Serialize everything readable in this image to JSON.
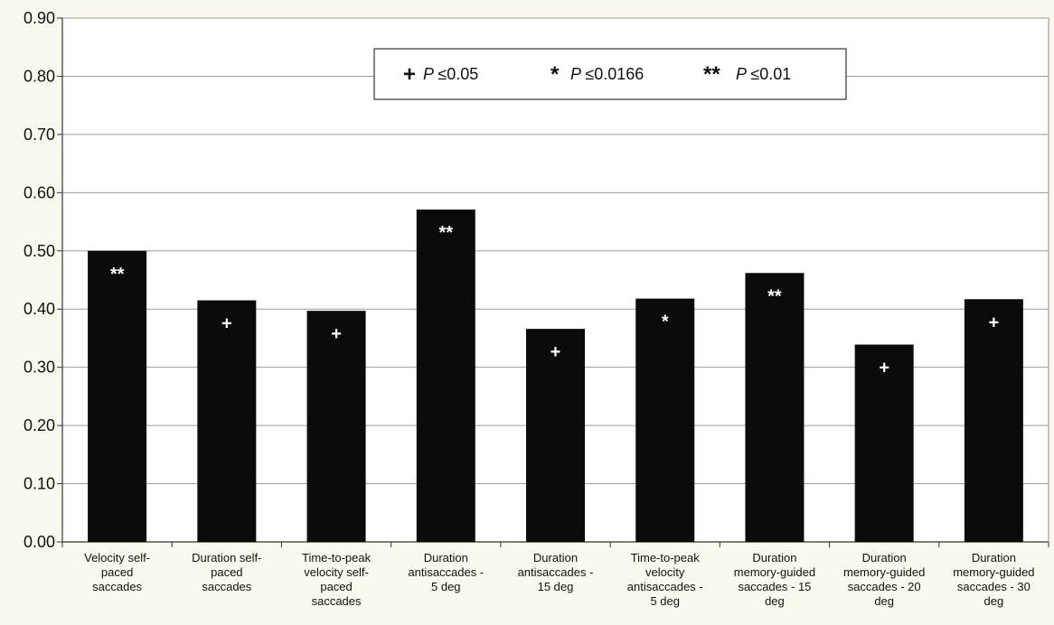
{
  "chart_data": {
    "type": "bar",
    "title": "",
    "xlabel": "",
    "ylabel": "",
    "ylim": [
      0,
      0.9
    ],
    "y_ticks": [
      "0.00",
      "0.10",
      "0.20",
      "0.30",
      "0.40",
      "0.50",
      "0.60",
      "0.70",
      "0.80",
      "0.90"
    ],
    "grid": true,
    "categories": [
      [
        "Velocity self-",
        "paced",
        "saccades"
      ],
      [
        "Duration self-",
        "paced",
        "saccades"
      ],
      [
        "Time-to-peak",
        "velocity self-",
        "paced",
        "saccades"
      ],
      [
        "Duration",
        "antisaccades -",
        "5 deg"
      ],
      [
        "Duration",
        "antisaccades -",
        "15 deg"
      ],
      [
        "Time-to-peak",
        "velocity",
        "antisaccades -",
        "5 deg"
      ],
      [
        "Duration",
        "memory-guided",
        "saccades - 15",
        "deg"
      ],
      [
        "Duration",
        "memory-guided",
        "saccades - 20",
        "deg"
      ],
      [
        "Duration",
        "memory-guided",
        "saccades - 30",
        "deg"
      ]
    ],
    "values": [
      0.5,
      0.415,
      0.397,
      0.571,
      0.366,
      0.418,
      0.462,
      0.339,
      0.417
    ],
    "significance": [
      "**",
      "+",
      "+",
      "**",
      "+",
      "*",
      "**",
      "+",
      "+"
    ],
    "bar_color": "#0b0b0b",
    "legend": {
      "placement": "top-center",
      "items": [
        {
          "symbol": "+",
          "label": "P ≤ 0.05"
        },
        {
          "symbol": "*",
          "label": "P ≤ 0.0166"
        },
        {
          "symbol": "**",
          "label": "P ≤ 0.01"
        }
      ]
    }
  }
}
